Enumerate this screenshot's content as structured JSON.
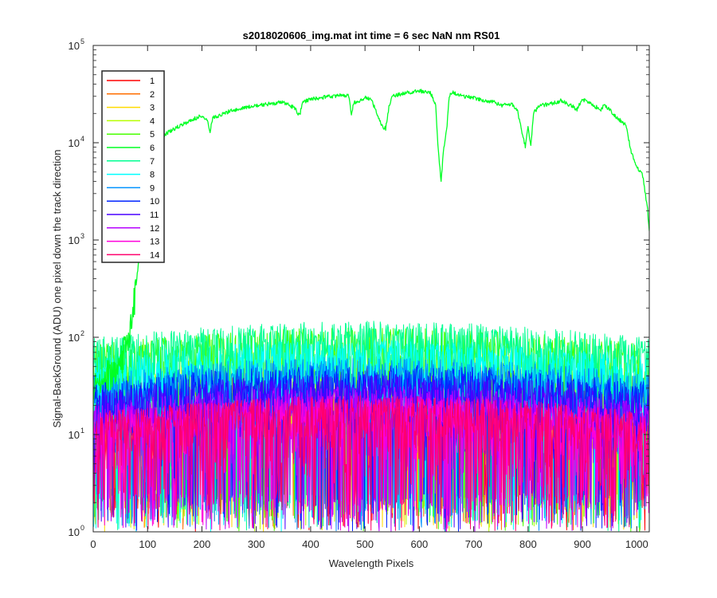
{
  "chart_data": {
    "type": "line",
    "title": "s2018020606_img.mat int time = 6 sec  NaN nm RS01",
    "xlabel": "Wavelength Pixels",
    "ylabel": "Signal-BackGround (ADU) one pixel down the track direction",
    "x_scale": "linear",
    "y_scale": "log",
    "xlim": [
      0,
      1023
    ],
    "ylim": [
      1,
      100000
    ],
    "x_ticks": [
      "0",
      "100",
      "200",
      "300",
      "400",
      "500",
      "600",
      "700",
      "800",
      "900",
      "1000"
    ],
    "y_ticks": [
      {
        "base": "10",
        "exp": "0"
      },
      {
        "base": "10",
        "exp": "1"
      },
      {
        "base": "10",
        "exp": "2"
      },
      {
        "base": "10",
        "exp": "3"
      },
      {
        "base": "10",
        "exp": "4"
      },
      {
        "base": "10",
        "exp": "5"
      }
    ],
    "grid": false,
    "legend_position": "top-left",
    "series": [
      {
        "name": "1",
        "color": "#ff0000",
        "profile": "noise",
        "typical": 10
      },
      {
        "name": "2",
        "color": "#ff6d00",
        "profile": "noise",
        "typical": 10
      },
      {
        "name": "3",
        "color": "#ffdb00",
        "profile": "noise",
        "typical": 10
      },
      {
        "name": "4",
        "color": "#b6ff00",
        "profile": "noise",
        "typical": 35
      },
      {
        "name": "5",
        "color": "#49ff00",
        "profile": "noise",
        "typical": 60
      },
      {
        "name": "6",
        "color": "#00ff24",
        "profile": "signal",
        "x": [
          0,
          20,
          40,
          50,
          60,
          70,
          80,
          90,
          100,
          110,
          120,
          140,
          160,
          180,
          200,
          210,
          215,
          220,
          250,
          280,
          300,
          320,
          350,
          370,
          380,
          385,
          400,
          420,
          440,
          460,
          470,
          475,
          480,
          490,
          500,
          510,
          520,
          530,
          538,
          545,
          550,
          570,
          580,
          600,
          620,
          630,
          635,
          640,
          645,
          650,
          655,
          660,
          680,
          700,
          720,
          740,
          750,
          770,
          780,
          790,
          795,
          800,
          805,
          810,
          820,
          840,
          860,
          880,
          890,
          900,
          920,
          935,
          940,
          960,
          980,
          990,
          1000,
          1010,
          1020,
          1023
        ],
        "values": [
          30,
          40,
          45,
          55,
          80,
          130,
          400,
          1200,
          5000,
          9500,
          11000,
          13000,
          15000,
          17000,
          19000,
          17000,
          13000,
          18000,
          21000,
          23000,
          24000,
          25000,
          26000,
          23000,
          19000,
          26000,
          28000,
          29000,
          30000,
          31000,
          30000,
          20000,
          26000,
          27000,
          29000,
          28000,
          22000,
          15000,
          14000,
          25000,
          30000,
          32000,
          33000,
          34000,
          33000,
          25000,
          8000,
          4000,
          9000,
          13000,
          30000,
          33000,
          30000,
          29000,
          27000,
          26000,
          24000,
          25000,
          22000,
          12000,
          9000,
          15000,
          9000,
          20000,
          24000,
          25000,
          27000,
          24000,
          22000,
          28000,
          24000,
          22000,
          25000,
          19000,
          15000,
          8000,
          5500,
          5000,
          2000,
          1200
        ]
      },
      {
        "name": "7",
        "color": "#00ff92",
        "profile": "noise",
        "typical": 70
      },
      {
        "name": "8",
        "color": "#00ffff",
        "profile": "noise",
        "typical": 45
      },
      {
        "name": "9",
        "color": "#0092ff",
        "profile": "noise",
        "typical": 30
      },
      {
        "name": "10",
        "color": "#0024ff",
        "profile": "noise",
        "typical": 25
      },
      {
        "name": "11",
        "color": "#4900ff",
        "profile": "noise",
        "typical": 20
      },
      {
        "name": "12",
        "color": "#b600ff",
        "profile": "noise",
        "typical": 15
      },
      {
        "name": "13",
        "color": "#ff00db",
        "profile": "noise",
        "typical": 12
      },
      {
        "name": "14",
        "color": "#ff006d",
        "profile": "noise",
        "typical": 12
      }
    ]
  }
}
